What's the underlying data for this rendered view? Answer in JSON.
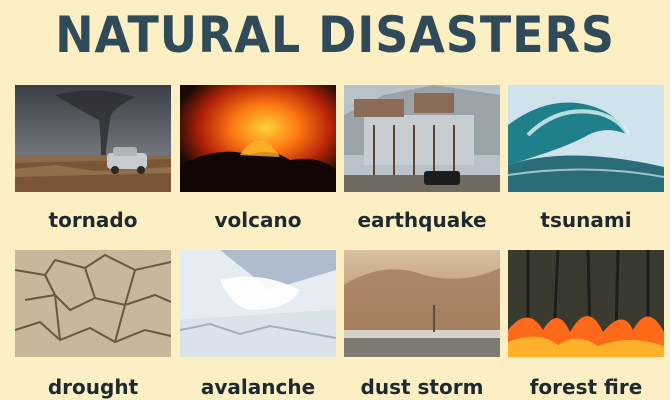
{
  "title": "NATURAL DISASTERS",
  "items": [
    {
      "label": "tornado"
    },
    {
      "label": "volcano"
    },
    {
      "label": "earthquake"
    },
    {
      "label": "tsunami"
    },
    {
      "label": "drought"
    },
    {
      "label": "avalanche"
    },
    {
      "label": "dust storm"
    },
    {
      "label": "forest fire"
    }
  ],
  "colors": {
    "background": "#fcefc4",
    "title": "#2f4b5a",
    "label": "#1f2a30"
  }
}
